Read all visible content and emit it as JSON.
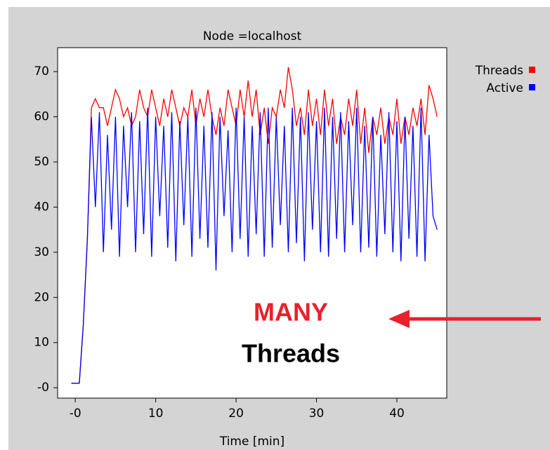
{
  "chart_data": {
    "type": "line",
    "title": "Node =localhost",
    "x_label": "Time [min]",
    "annotations": [
      "MANY",
      "Threads"
    ],
    "legend": "right-top",
    "xlim": [
      -2.2,
      46.2
    ],
    "ylim": [
      -2.3,
      75.3
    ],
    "xticks": [
      {
        "value": 0,
        "label": "-0"
      },
      10,
      20,
      30,
      40
    ],
    "yticks": [
      {
        "value": 0,
        "label": "-0"
      },
      10,
      20,
      30,
      40,
      50,
      60,
      70
    ],
    "x": [
      -0.5,
      0,
      0.5,
      1,
      1.5,
      2,
      2.5,
      3,
      3.5,
      4,
      4.5,
      5,
      5.5,
      6,
      6.5,
      7,
      7.5,
      8,
      8.5,
      9,
      9.5,
      10,
      10.5,
      11,
      11.5,
      12,
      12.5,
      13,
      13.5,
      14,
      14.5,
      15,
      15.5,
      16,
      16.5,
      17,
      17.5,
      18,
      18.5,
      19,
      19.5,
      20,
      20.5,
      21,
      21.5,
      22,
      22.5,
      23,
      23.5,
      24,
      24.5,
      25,
      25.5,
      26,
      26.5,
      27,
      27.5,
      28,
      28.5,
      29,
      29.5,
      30,
      30.5,
      31,
      31.5,
      32,
      32.5,
      33,
      33.5,
      34,
      34.5,
      35,
      35.5,
      36,
      36.5,
      37,
      37.5,
      38,
      38.5,
      39,
      39.5,
      40,
      40.5,
      41,
      41.5,
      42,
      42.5,
      43,
      43.5,
      44,
      44.5,
      45
    ],
    "series": [
      {
        "name": "Threads",
        "color": "#ff0000",
        "values": [
          1,
          1,
          1,
          14,
          33,
          62,
          64,
          62,
          62,
          58,
          62,
          66,
          64,
          60,
          62,
          58,
          60,
          66,
          62,
          60,
          66,
          62,
          58,
          64,
          60,
          66,
          62,
          58,
          62,
          60,
          66,
          58,
          64,
          60,
          66,
          60,
          56,
          62,
          58,
          66,
          62,
          58,
          66,
          60,
          68,
          60,
          66,
          56,
          62,
          54,
          62,
          60,
          66,
          62,
          71,
          66,
          58,
          62,
          56,
          66,
          58,
          64,
          56,
          66,
          58,
          64,
          54,
          60,
          56,
          64,
          58,
          66,
          54,
          62,
          52,
          60,
          56,
          62,
          54,
          60,
          56,
          64,
          54,
          60,
          56,
          62,
          58,
          64,
          56,
          67,
          64,
          60
        ]
      },
      {
        "name": "Active",
        "color": "#0000ff",
        "values": [
          1,
          1,
          1,
          14,
          33,
          60,
          40,
          61,
          30,
          56,
          35,
          60,
          29,
          58,
          40,
          61,
          30,
          59,
          34,
          62,
          29,
          60,
          38,
          58,
          31,
          61,
          28,
          59,
          36,
          60,
          29,
          62,
          33,
          58,
          31,
          61,
          26,
          60,
          38,
          57,
          30,
          62,
          33,
          60,
          29,
          58,
          34,
          61,
          29,
          62,
          31,
          60,
          36,
          58,
          30,
          62,
          32,
          60,
          28,
          61,
          35,
          59,
          30,
          62,
          29,
          60,
          33,
          61,
          30,
          59,
          36,
          62,
          30,
          58,
          31,
          60,
          29,
          56,
          34,
          61,
          30,
          59,
          28,
          60,
          33,
          58,
          29,
          62,
          28,
          56,
          38,
          35
        ]
      }
    ]
  }
}
